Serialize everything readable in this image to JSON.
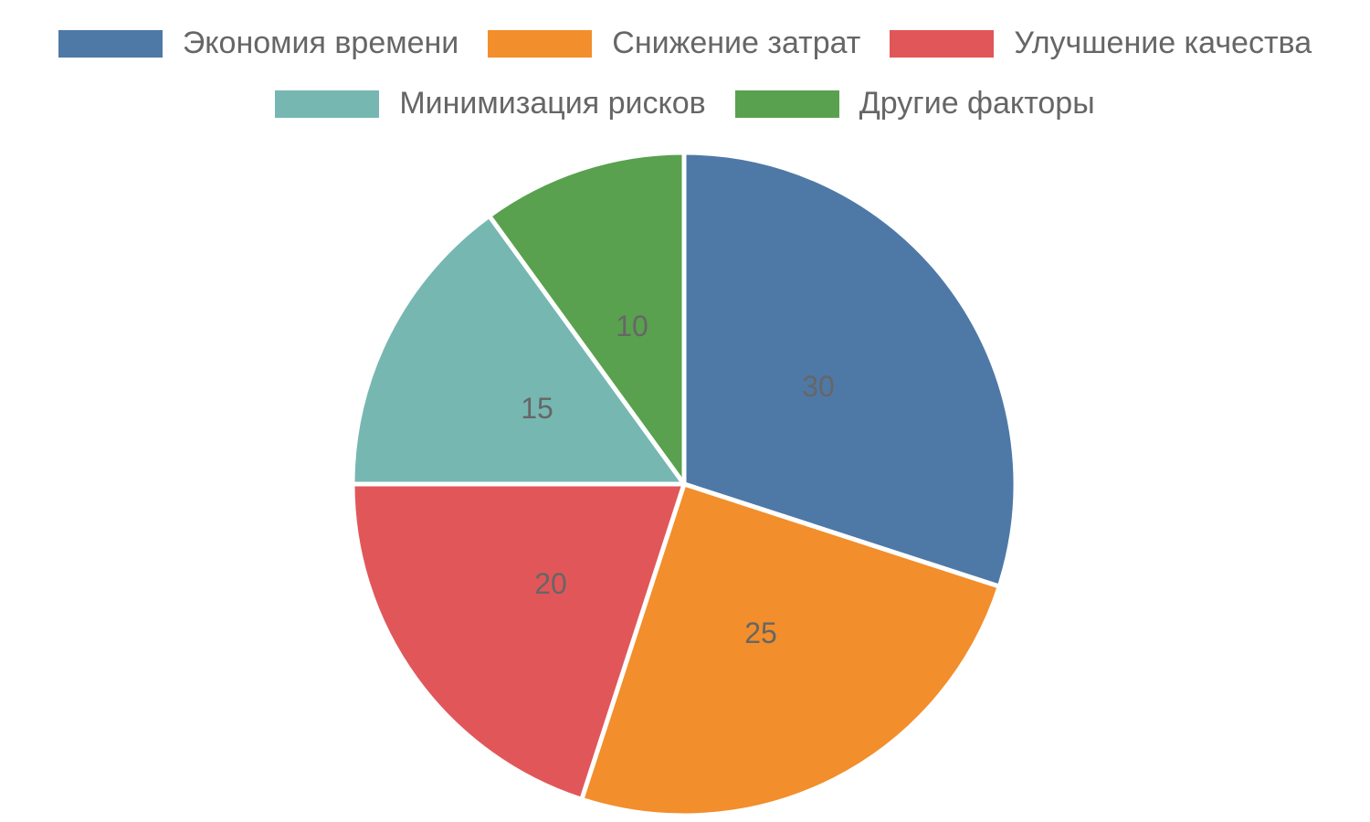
{
  "chart_data": {
    "type": "pie",
    "title": "",
    "categories": [
      "Экономия времени",
      "Снижение затрат",
      "Улучшение качества",
      "Минимизация рисков",
      "Другие факторы"
    ],
    "values": [
      30,
      25,
      20,
      15,
      10
    ],
    "colors": [
      "#4E79A7",
      "#F28E2B",
      "#E15759",
      "#76B7B2",
      "#59A14F"
    ],
    "data_labels": [
      "30",
      "25",
      "20",
      "15",
      "10"
    ],
    "start_angle": "12 o'clock, clockwise",
    "legend_position": "top"
  },
  "legend": {
    "items": [
      {
        "label": "Экономия времени",
        "color": "#4E79A7"
      },
      {
        "label": "Снижение затрат",
        "color": "#F28E2B"
      },
      {
        "label": "Улучшение качества",
        "color": "#E15759"
      },
      {
        "label": "Минимизация рисков",
        "color": "#76B7B2"
      },
      {
        "label": "Другие факторы",
        "color": "#59A14F"
      }
    ]
  },
  "slices": [
    {
      "label": "30"
    },
    {
      "label": "25"
    },
    {
      "label": "20"
    },
    {
      "label": "15"
    },
    {
      "label": "10"
    }
  ]
}
